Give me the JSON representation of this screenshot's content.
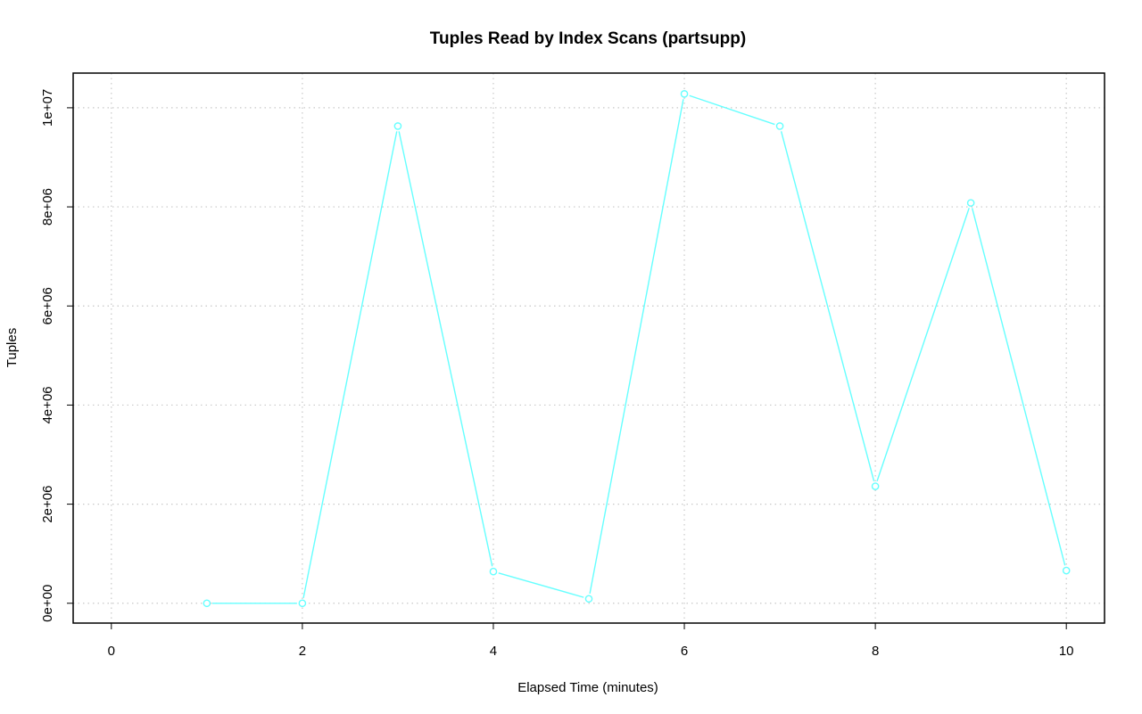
{
  "chart_data": {
    "type": "line",
    "title": "Tuples Read by Index Scans (partsupp)",
    "xlabel": "Elapsed Time (minutes)",
    "ylabel": "Tuples",
    "xlim": [
      -0.4,
      10.4
    ],
    "ylim": [
      -400000,
      10700000
    ],
    "x_ticks": [
      0,
      2,
      4,
      6,
      8,
      10
    ],
    "x_tick_labels": [
      "0",
      "2",
      "4",
      "6",
      "8",
      "10"
    ],
    "y_ticks": [
      0,
      2000000,
      4000000,
      6000000,
      8000000,
      10000000
    ],
    "y_tick_labels": [
      "0e+00",
      "2e+06",
      "4e+06",
      "6e+06",
      "8e+06",
      "1e+07"
    ],
    "grid": true,
    "series": [
      {
        "color": "#66ffff",
        "marker": "open-circle",
        "x": [
          1,
          2,
          3,
          4,
          5,
          6,
          7,
          8,
          9,
          10
        ],
        "values": [
          0,
          0,
          9630000,
          640000,
          90000,
          10280000,
          9630000,
          2360000,
          8080000,
          660000
        ]
      }
    ]
  }
}
